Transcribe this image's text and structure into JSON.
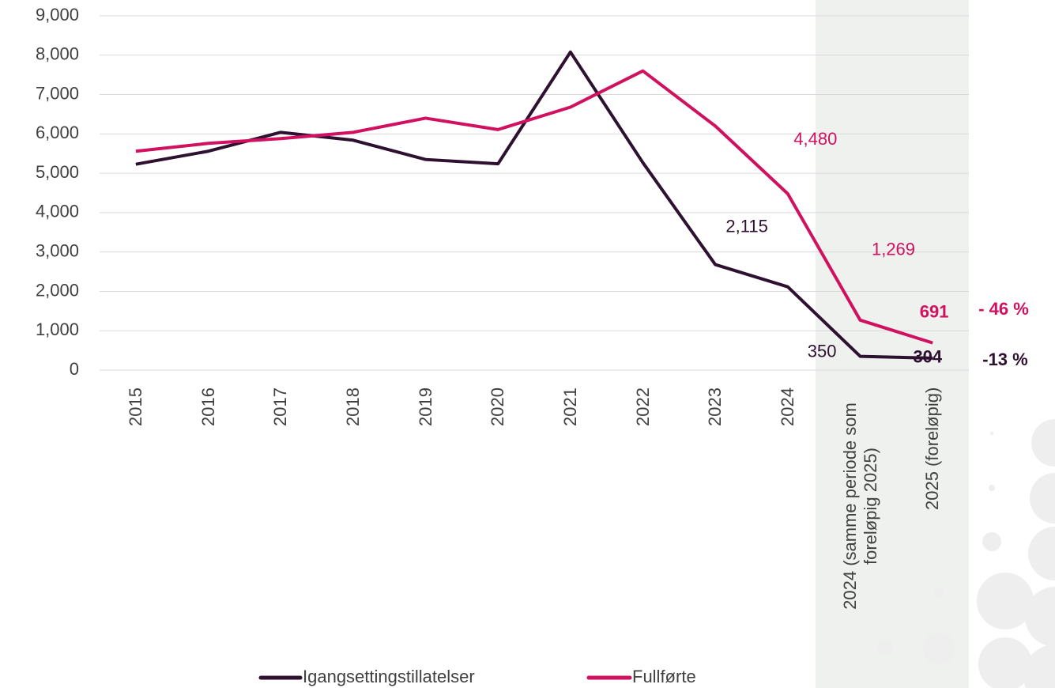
{
  "chart_data": {
    "type": "line",
    "categories": [
      "2015",
      "2016",
      "2017",
      "2018",
      "2019",
      "2020",
      "2021",
      "2022",
      "2023",
      "2024",
      "2024 (samme periode som foreløpig 2025)",
      "2025 (foreløpig)"
    ],
    "series": [
      {
        "name": "Igangsettingstillatelser",
        "color": "#2e1130",
        "values": [
          5230,
          5560,
          6040,
          5840,
          5350,
          5240,
          8080,
          5270,
          2680,
          2115,
          350,
          304
        ],
        "value_labels": [
          null,
          null,
          null,
          null,
          null,
          null,
          null,
          null,
          null,
          "2,115",
          "350",
          "304"
        ]
      },
      {
        "name": "Fullførte",
        "color": "#d1105f",
        "values": [
          5560,
          5760,
          5880,
          6040,
          6400,
          6110,
          6680,
          7600,
          6200,
          4480,
          1269,
          691
        ],
        "value_labels": [
          null,
          null,
          null,
          null,
          null,
          null,
          null,
          null,
          null,
          "4,480",
          "1,269",
          "691"
        ]
      }
    ],
    "annotations": [
      "- 46 %",
      "-13 %"
    ],
    "ylim": [
      0,
      9000
    ],
    "yticks": [
      0,
      {
        "value": 1000,
        "label": "1,000"
      },
      {
        "value": 2000,
        "label": "2,000"
      },
      {
        "value": 3000,
        "label": "3,000"
      },
      {
        "value": 4000,
        "label": "4,000"
      },
      {
        "value": 5000,
        "label": "5,000"
      },
      {
        "value": 6000,
        "label": "6,000"
      },
      {
        "value": 7000,
        "label": "7,000"
      },
      {
        "value": 8000,
        "label": "8,000"
      },
      {
        "value": 9000,
        "label": "9,000"
      }
    ],
    "grid": true
  }
}
